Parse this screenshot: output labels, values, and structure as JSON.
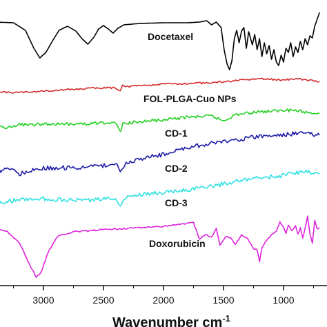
{
  "chart_data": {
    "type": "line",
    "xlabel": "Wavenumber cm",
    "xlabel_superscript": "-1",
    "x_reversed": true,
    "xlim": [
      3400,
      700
    ],
    "xticks": [
      {
        "value": 3000,
        "label": "3000"
      },
      {
        "value": 2500,
        "label": "2500"
      },
      {
        "value": 2000,
        "label": "2000"
      },
      {
        "value": 1500,
        "label": "1500"
      },
      {
        "value": 1000,
        "label": "1000"
      }
    ],
    "series": [
      {
        "name": "Docetaxel",
        "color": "#000000",
        "noise": 0,
        "points": [
          [
            3400,
            32
          ],
          [
            3250,
            33
          ],
          [
            3150,
            44
          ],
          [
            3080,
            70
          ],
          [
            3030,
            84
          ],
          [
            2980,
            76
          ],
          [
            2920,
            58
          ],
          [
            2870,
            44
          ],
          [
            2800,
            38
          ],
          [
            2730,
            45
          ],
          [
            2680,
            56
          ],
          [
            2630,
            64
          ],
          [
            2580,
            54
          ],
          [
            2540,
            42
          ],
          [
            2500,
            37
          ],
          [
            2460,
            42
          ],
          [
            2420,
            48
          ],
          [
            2380,
            41
          ],
          [
            2330,
            36
          ],
          [
            2200,
            34
          ],
          [
            2000,
            33
          ],
          [
            1800,
            33
          ],
          [
            1700,
            32
          ],
          [
            1640,
            30
          ],
          [
            1600,
            36
          ],
          [
            1560,
            32
          ],
          [
            1520,
            40
          ],
          [
            1495,
            72
          ],
          [
            1470,
            93
          ],
          [
            1450,
            101
          ],
          [
            1430,
            88
          ],
          [
            1410,
            56
          ],
          [
            1390,
            44
          ],
          [
            1370,
            62
          ],
          [
            1350,
            45
          ],
          [
            1330,
            40
          ],
          [
            1310,
            70
          ],
          [
            1290,
            46
          ],
          [
            1260,
            65
          ],
          [
            1240,
            50
          ],
          [
            1220,
            72
          ],
          [
            1200,
            56
          ],
          [
            1180,
            82
          ],
          [
            1160,
            62
          ],
          [
            1140,
            78
          ],
          [
            1120,
            66
          ],
          [
            1100,
            86
          ],
          [
            1080,
            72
          ],
          [
            1060,
            90
          ],
          [
            1040,
            95
          ],
          [
            1020,
            80
          ],
          [
            1000,
            90
          ],
          [
            980,
            70
          ],
          [
            960,
            76
          ],
          [
            940,
            62
          ],
          [
            920,
            82
          ],
          [
            900,
            68
          ],
          [
            880,
            76
          ],
          [
            860,
            60
          ],
          [
            840,
            72
          ],
          [
            820,
            56
          ],
          [
            800,
            65
          ],
          [
            780,
            52
          ],
          [
            760,
            55
          ],
          [
            740,
            38
          ],
          [
            720,
            28
          ],
          [
            700,
            18
          ]
        ],
        "label": "Docetaxel"
      },
      {
        "name": "FOL-PLGA-Cuo NPs",
        "color": "#d42a2a",
        "noise": 1.2,
        "points": [
          [
            3400,
            134
          ],
          [
            3200,
            134
          ],
          [
            3000,
            132
          ],
          [
            2800,
            130
          ],
          [
            2600,
            128
          ],
          [
            2400,
            127
          ],
          [
            2360,
            132
          ],
          [
            2340,
            122
          ],
          [
            2320,
            126
          ],
          [
            2200,
            124
          ],
          [
            2000,
            122
          ],
          [
            1800,
            121
          ],
          [
            1600,
            120
          ],
          [
            1400,
            117
          ],
          [
            1200,
            114
          ],
          [
            1100,
            115
          ],
          [
            1000,
            116
          ],
          [
            900,
            114
          ],
          [
            800,
            116
          ],
          [
            700,
            118
          ]
        ],
        "label": "FOL-PLGA-Cuo NPs"
      },
      {
        "name": "CD-1",
        "color": "#22d022",
        "noise": 2.2,
        "points": [
          [
            3400,
            182
          ],
          [
            3300,
            186
          ],
          [
            3200,
            181
          ],
          [
            3000,
            180
          ],
          [
            2800,
            180
          ],
          [
            2600,
            179
          ],
          [
            2400,
            178
          ],
          [
            2360,
            192
          ],
          [
            2340,
            180
          ],
          [
            2200,
            176
          ],
          [
            2000,
            174
          ],
          [
            1800,
            170
          ],
          [
            1600,
            168
          ],
          [
            1500,
            175
          ],
          [
            1400,
            166
          ],
          [
            1200,
            162
          ],
          [
            1000,
            160
          ],
          [
            900,
            160
          ],
          [
            800,
            163
          ],
          [
            700,
            164
          ]
        ],
        "label": "CD-1"
      },
      {
        "name": "CD-2",
        "color": "#1b1ba8",
        "noise": 3.2,
        "points": [
          [
            3400,
            250
          ],
          [
            3300,
            243
          ],
          [
            3200,
            252
          ],
          [
            3100,
            246
          ],
          [
            3000,
            244
          ],
          [
            2800,
            243
          ],
          [
            2600,
            242
          ],
          [
            2400,
            238
          ],
          [
            2360,
            246
          ],
          [
            2300,
            236
          ],
          [
            2200,
            230
          ],
          [
            2000,
            224
          ],
          [
            1800,
            214
          ],
          [
            1600,
            208
          ],
          [
            1400,
            203
          ],
          [
            1200,
            198
          ],
          [
            1000,
            196
          ],
          [
            900,
            193
          ],
          [
            800,
            193
          ],
          [
            700,
            196
          ]
        ],
        "label": "CD-2"
      },
      {
        "name": "CD-3",
        "color": "#2ee0e0",
        "noise": 3.0,
        "points": [
          [
            3400,
            293
          ],
          [
            3300,
            292
          ],
          [
            3200,
            289
          ],
          [
            3000,
            288
          ],
          [
            2800,
            290
          ],
          [
            2600,
            290
          ],
          [
            2400,
            288
          ],
          [
            2360,
            296
          ],
          [
            2300,
            284
          ],
          [
            2200,
            282
          ],
          [
            2000,
            279
          ],
          [
            1800,
            275
          ],
          [
            1600,
            270
          ],
          [
            1400,
            263
          ],
          [
            1200,
            258
          ],
          [
            1000,
            254
          ],
          [
            900,
            250
          ],
          [
            800,
            249
          ],
          [
            700,
            252
          ]
        ],
        "label": "CD-3"
      },
      {
        "name": "Doxorubicin",
        "color": "#dd22dd",
        "noise": 1.0,
        "points": [
          [
            3400,
            330
          ],
          [
            3300,
            336
          ],
          [
            3200,
            352
          ],
          [
            3120,
            382
          ],
          [
            3060,
            402
          ],
          [
            3020,
            395
          ],
          [
            2960,
            365
          ],
          [
            2880,
            342
          ],
          [
            2750,
            336
          ],
          [
            2600,
            334
          ],
          [
            2400,
            332
          ],
          [
            2200,
            330
          ],
          [
            2000,
            328
          ],
          [
            1850,
            325
          ],
          [
            1750,
            323
          ],
          [
            1700,
            346
          ],
          [
            1650,
            340
          ],
          [
            1600,
            344
          ],
          [
            1560,
            332
          ],
          [
            1530,
            355
          ],
          [
            1480,
            342
          ],
          [
            1440,
            345
          ],
          [
            1400,
            354
          ],
          [
            1350,
            340
          ],
          [
            1300,
            346
          ],
          [
            1250,
            360
          ],
          [
            1220,
            362
          ],
          [
            1200,
            379
          ],
          [
            1180,
            360
          ],
          [
            1140,
            348
          ],
          [
            1100,
            340
          ],
          [
            1060,
            335
          ],
          [
            1030,
            322
          ],
          [
            1000,
            330
          ],
          [
            980,
            338
          ],
          [
            960,
            326
          ],
          [
            930,
            335
          ],
          [
            900,
            328
          ],
          [
            880,
            340
          ],
          [
            860,
            330
          ],
          [
            840,
            346
          ],
          [
            820,
            330
          ],
          [
            800,
            314
          ],
          [
            780,
            340
          ],
          [
            760,
            352
          ],
          [
            740,
            320
          ],
          [
            720,
            332
          ],
          [
            700,
            330
          ]
        ],
        "label": "Doxorubicin"
      }
    ]
  }
}
